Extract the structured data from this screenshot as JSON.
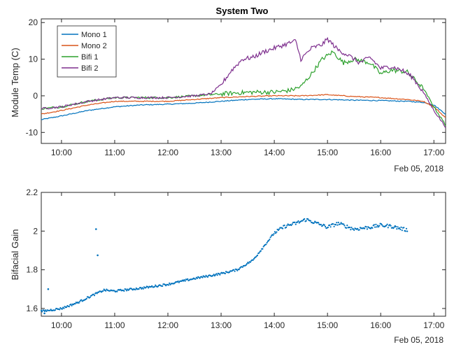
{
  "chart_data": [
    {
      "type": "line",
      "title": "System Two",
      "ylabel": "Module Temp (C)",
      "xlabel": "",
      "date_label": "Feb 05, 2018",
      "x_range_hours": [
        9.62,
        17.22
      ],
      "ylim": [
        -13,
        21
      ],
      "x_ticks": [
        10,
        11,
        12,
        13,
        14,
        15,
        16,
        17
      ],
      "x_tick_labels": [
        "10:00",
        "11:00",
        "12:00",
        "13:00",
        "14:00",
        "15:00",
        "16:00",
        "17:00"
      ],
      "y_ticks": [
        -10,
        0,
        10,
        20
      ],
      "y_tick_labels": [
        "-10",
        "0",
        "10",
        "20"
      ],
      "legend_position": "top-left",
      "grid": false,
      "series": [
        {
          "name": "Mono 1",
          "color": "#0072BD",
          "x": [
            9.62,
            10.0,
            10.5,
            11.0,
            11.5,
            12.0,
            12.5,
            13.0,
            13.5,
            14.0,
            14.5,
            15.0,
            15.5,
            16.0,
            16.5,
            16.8,
            17.0,
            17.22
          ],
          "y": [
            -6.5,
            -5.5,
            -4.0,
            -3.0,
            -2.5,
            -2.3,
            -2.0,
            -1.5,
            -1.0,
            -0.8,
            -1.0,
            -1.0,
            -1.2,
            -1.3,
            -1.5,
            -1.8,
            -2.5,
            -5.0
          ]
        },
        {
          "name": "Mono 2",
          "color": "#D95319",
          "x": [
            9.62,
            10.0,
            10.5,
            11.0,
            11.5,
            12.0,
            12.5,
            13.0,
            13.5,
            14.0,
            14.5,
            15.0,
            15.5,
            16.0,
            16.5,
            16.8,
            17.0,
            17.22
          ],
          "y": [
            -5.0,
            -4.0,
            -2.5,
            -1.5,
            -1.5,
            -1.5,
            -1.0,
            -0.5,
            -0.2,
            0.0,
            0.0,
            0.3,
            -0.2,
            -0.5,
            -1.0,
            -1.5,
            -3.0,
            -6.0
          ]
        },
        {
          "name": "Bifi 1",
          "color": "#2CA02C",
          "x": [
            9.62,
            10.0,
            10.5,
            11.0,
            11.5,
            12.0,
            12.5,
            13.0,
            13.3,
            13.6,
            14.0,
            14.3,
            14.5,
            14.7,
            14.9,
            15.1,
            15.3,
            15.5,
            15.8,
            16.0,
            16.2,
            16.5,
            16.8,
            17.0,
            17.22
          ],
          "y": [
            -3.5,
            -3.0,
            -1.5,
            -0.5,
            -0.5,
            -0.5,
            0.0,
            0.5,
            0.8,
            1.0,
            1.0,
            1.5,
            2.5,
            6.0,
            10.0,
            12.0,
            9.0,
            10.0,
            9.0,
            6.0,
            7.0,
            6.5,
            2.0,
            -3.0,
            -8.0
          ]
        },
        {
          "name": "Bifi 2",
          "color": "#7E2F8E",
          "x": [
            9.62,
            10.0,
            10.5,
            11.0,
            11.5,
            12.0,
            12.5,
            12.8,
            13.0,
            13.2,
            13.4,
            13.6,
            13.8,
            14.0,
            14.2,
            14.4,
            14.5,
            14.7,
            14.9,
            15.0,
            15.2,
            15.4,
            15.6,
            15.8,
            16.0,
            16.2,
            16.4,
            16.6,
            16.8,
            17.0,
            17.22
          ],
          "y": [
            -3.5,
            -3.0,
            -1.5,
            -0.5,
            -0.5,
            -0.5,
            0.0,
            0.5,
            3.0,
            7.0,
            10.0,
            10.5,
            12.0,
            13.0,
            14.0,
            15.0,
            10.0,
            13.0,
            14.0,
            15.5,
            12.5,
            11.0,
            9.0,
            10.5,
            7.5,
            8.0,
            7.0,
            5.0,
            1.0,
            -4.0,
            -8.5
          ]
        }
      ]
    },
    {
      "type": "scatter",
      "ylabel": "Bifacial Gain",
      "xlabel": "",
      "date_label": "Feb 05, 2018",
      "x_range_hours": [
        9.62,
        17.22
      ],
      "ylim": [
        1.56,
        2.2
      ],
      "x_ticks": [
        10,
        11,
        12,
        13,
        14,
        15,
        16,
        17
      ],
      "x_tick_labels": [
        "10:00",
        "11:00",
        "12:00",
        "13:00",
        "14:00",
        "15:00",
        "16:00",
        "17:00"
      ],
      "y_ticks": [
        1.6,
        1.8,
        2.0,
        2.2
      ],
      "y_tick_labels": [
        "1.6",
        "1.8",
        "2",
        "2.2"
      ],
      "grid": false,
      "color": "#0072BD",
      "trend": {
        "x": [
          9.62,
          10.0,
          10.3,
          10.6,
          10.8,
          11.0,
          11.5,
          12.0,
          12.5,
          13.0,
          13.3,
          13.6,
          13.8,
          14.0,
          14.2,
          14.4,
          14.6,
          14.8,
          15.0,
          15.2,
          15.5,
          15.8,
          16.0,
          16.2,
          16.5
        ],
        "y": [
          1.585,
          1.6,
          1.63,
          1.67,
          1.695,
          1.69,
          1.705,
          1.725,
          1.755,
          1.78,
          1.8,
          1.85,
          1.92,
          1.99,
          2.025,
          2.04,
          2.06,
          2.04,
          2.02,
          2.04,
          2.01,
          2.02,
          2.03,
          2.025,
          2.005
        ]
      },
      "outliers": [
        {
          "x": 10.65,
          "y": 2.01
        },
        {
          "x": 10.68,
          "y": 1.875
        },
        {
          "x": 9.75,
          "y": 1.7
        },
        {
          "x": 9.68,
          "y": 1.575
        }
      ]
    }
  ]
}
